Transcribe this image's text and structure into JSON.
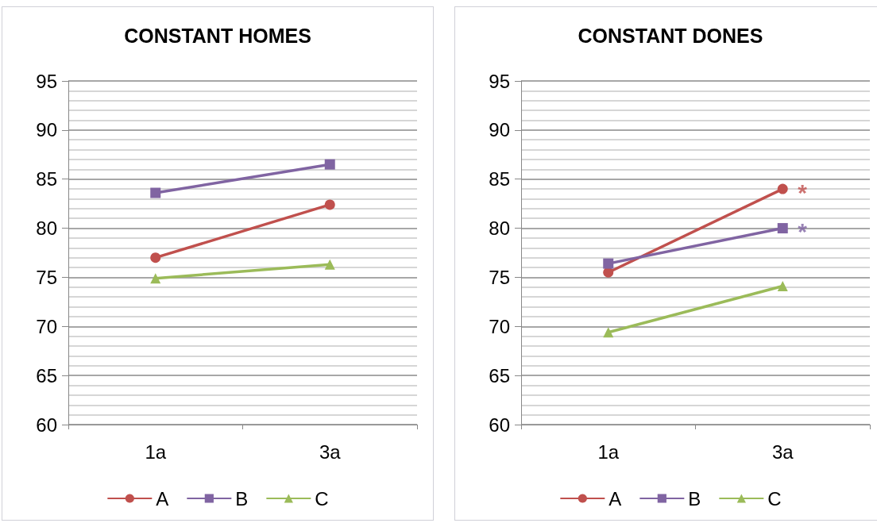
{
  "chart_data": [
    {
      "type": "line",
      "title": "CONSTANT HOMES",
      "categories": [
        "1a",
        "3a"
      ],
      "series": [
        {
          "name": "A",
          "color": "#c0504d",
          "marker": "circle",
          "values": [
            77.0,
            82.4
          ]
        },
        {
          "name": "B",
          "color": "#8064a2",
          "marker": "square",
          "values": [
            83.6,
            86.5
          ]
        },
        {
          "name": "C",
          "color": "#9bbb59",
          "marker": "triangle",
          "values": [
            74.9,
            76.3
          ]
        }
      ],
      "ylim": [
        60,
        95
      ],
      "yticks": [
        60,
        {
          "value": 61,
          "label": null
        },
        {
          "value": 62,
          "label": null
        },
        {
          "value": 63,
          "label": null
        },
        {
          "value": 64,
          "label": null
        },
        65,
        {
          "value": 66,
          "label": null
        },
        {
          "value": 67,
          "label": null
        },
        {
          "value": 68,
          "label": null
        },
        {
          "value": 69,
          "label": null
        },
        70,
        {
          "value": 71,
          "label": null
        },
        {
          "value": 72,
          "label": null
        },
        {
          "value": 73,
          "label": null
        },
        {
          "value": 74,
          "label": null
        },
        75,
        {
          "value": 76,
          "label": null
        },
        {
          "value": 77,
          "label": null
        },
        {
          "value": 78,
          "label": null
        },
        {
          "value": 79,
          "label": null
        },
        80,
        {
          "value": 81,
          "label": null
        },
        {
          "value": 82,
          "label": null
        },
        {
          "value": 83,
          "label": null
        },
        {
          "value": 84,
          "label": null
        },
        85,
        {
          "value": 86,
          "label": null
        },
        {
          "value": 87,
          "label": null
        },
        {
          "value": 88,
          "label": null
        },
        {
          "value": 89,
          "label": null
        },
        90,
        {
          "value": 91,
          "label": null
        },
        {
          "value": 92,
          "label": null
        },
        {
          "value": 93,
          "label": null
        },
        {
          "value": 94,
          "label": null
        },
        95
      ],
      "grid": "y",
      "legend": "bottom"
    },
    {
      "type": "line",
      "title": "CONSTANT DONES",
      "categories": [
        "1a",
        "3a"
      ],
      "series": [
        {
          "name": "A",
          "color": "#c0504d",
          "marker": "circle",
          "values": [
            75.5,
            84.0
          ]
        },
        {
          "name": "B",
          "color": "#8064a2",
          "marker": "square",
          "values": [
            76.4,
            80.0
          ]
        },
        {
          "name": "C",
          "color": "#9bbb59",
          "marker": "triangle",
          "values": [
            69.4,
            74.1
          ]
        }
      ],
      "ylim": [
        60,
        95
      ],
      "yticks": [
        60,
        {
          "value": 61,
          "label": null
        },
        {
          "value": 62,
          "label": null
        },
        {
          "value": 63,
          "label": null
        },
        {
          "value": 64,
          "label": null
        },
        65,
        {
          "value": 66,
          "label": null
        },
        {
          "value": 67,
          "label": null
        },
        {
          "value": 68,
          "label": null
        },
        {
          "value": 69,
          "label": null
        },
        70,
        {
          "value": 71,
          "label": null
        },
        {
          "value": 72,
          "label": null
        },
        {
          "value": 73,
          "label": null
        },
        {
          "value": 74,
          "label": null
        },
        75,
        {
          "value": 76,
          "label": null
        },
        {
          "value": 77,
          "label": null
        },
        {
          "value": 78,
          "label": null
        },
        {
          "value": 79,
          "label": null
        },
        80,
        {
          "value": 81,
          "label": null
        },
        {
          "value": 82,
          "label": null
        },
        {
          "value": 83,
          "label": null
        },
        {
          "value": 84,
          "label": null
        },
        85,
        {
          "value": 86,
          "label": null
        },
        {
          "value": 87,
          "label": null
        },
        {
          "value": 88,
          "label": null
        },
        {
          "value": 89,
          "label": null
        },
        90,
        {
          "value": 91,
          "label": null
        },
        {
          "value": 92,
          "label": null
        },
        {
          "value": 93,
          "label": null
        },
        {
          "value": 94,
          "label": null
        },
        95
      ],
      "grid": "y",
      "legend": "bottom",
      "annotations": [
        {
          "text": "*",
          "x": "3a",
          "y": 84.0
        },
        {
          "text": "*",
          "x": "3a",
          "y": 80.0
        }
      ]
    }
  ]
}
